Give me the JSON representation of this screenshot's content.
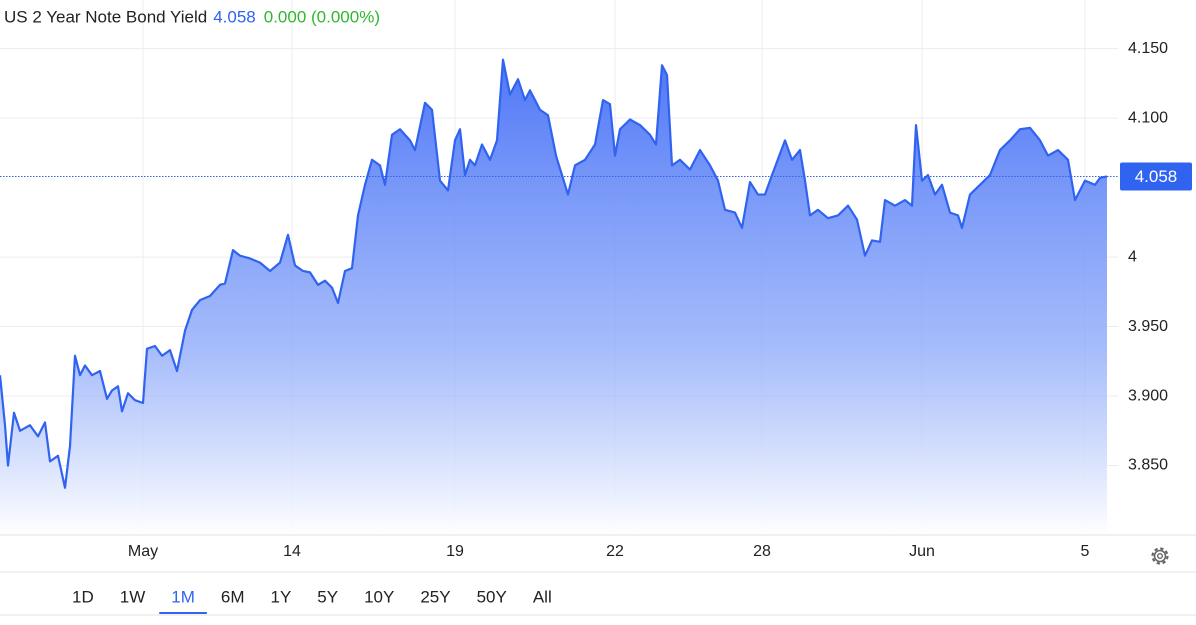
{
  "chart_data": {
    "type": "area",
    "title": "US 2 Year Note Bond Yield",
    "last": 4.058,
    "change": "0.000 (0.000%)",
    "color": "#2f63f0",
    "grid": true,
    "xlim": [
      0,
      111.8
    ],
    "ylim": [
      3.8,
      4.185
    ],
    "xticks": [
      {
        "value": 14.3,
        "label": "May"
      },
      {
        "value": 29.2,
        "label": "14"
      },
      {
        "value": 45.5,
        "label": "19"
      },
      {
        "value": 61.5,
        "label": "22"
      },
      {
        "value": 76.2,
        "label": "28"
      },
      {
        "value": 92.2,
        "label": "Jun"
      },
      {
        "value": 108.5,
        "label": "5"
      }
    ],
    "yticks": [
      {
        "value": 3.85,
        "label": "3.850"
      },
      {
        "value": 3.9,
        "label": "3.900"
      },
      {
        "value": 3.95,
        "label": "3.950"
      },
      4,
      {
        "value": 4.1,
        "label": "4.100"
      },
      {
        "value": 4.15,
        "label": "4.150"
      }
    ],
    "x": [
      0,
      0.5,
      0.8,
      1.4,
      2,
      3,
      3.8,
      4.5,
      5,
      5.8,
      6.5,
      7,
      7.5,
      8,
      8.5,
      9.2,
      10,
      10.7,
      11.2,
      11.8,
      12.2,
      12.8,
      13.5,
      14.3,
      14.7,
      15.5,
      16.2,
      17,
      17.7,
      18.5,
      19.2,
      20,
      21,
      22,
      22.5,
      23.3,
      24,
      25,
      26,
      27,
      28,
      28.8,
      29.5,
      30.3,
      31,
      31.8,
      32.5,
      33.2,
      33.8,
      34.5,
      35.2,
      35.8,
      36.5,
      37.2,
      38,
      38.5,
      39.2,
      40,
      41,
      41.5,
      42.5,
      43.2,
      44,
      44.8,
      45.5,
      46,
      46.5,
      47,
      47.5,
      48.2,
      49,
      49.7,
      50.3,
      51,
      51.8,
      52.5,
      53,
      54,
      54.8,
      55.6,
      56.2,
      56.8,
      57.5,
      58.5,
      59.5,
      60.3,
      61,
      61.5,
      62,
      63,
      64,
      65,
      65.6,
      66.2,
      66.7,
      67.2,
      68,
      69,
      70,
      71,
      71.8,
      72.5,
      73.5,
      74.2,
      75,
      75.8,
      76.5,
      77.2,
      78.5,
      79.2,
      80,
      80.5,
      81,
      81.8,
      82.8,
      83.8,
      84.8,
      85.7,
      86.5,
      87.2,
      88,
      88.5,
      89.5,
      90.5,
      91.2,
      91.6,
      92.2,
      92.8,
      93.5,
      94.2,
      95,
      95.8,
      96.2,
      97,
      98,
      99,
      100,
      101,
      102,
      103,
      104,
      104.8,
      105.8,
      106.8,
      107.5,
      108.5,
      109.5,
      110,
      110.7
    ],
    "values": [
      3.915,
      3.879,
      3.85,
      3.888,
      3.875,
      3.879,
      3.871,
      3.881,
      3.853,
      3.857,
      3.834,
      3.864,
      3.929,
      3.915,
      3.922,
      3.915,
      3.918,
      3.898,
      3.904,
      3.907,
      3.889,
      3.902,
      3.897,
      3.895,
      3.934,
      3.936,
      3.929,
      3.933,
      3.918,
      3.947,
      3.962,
      3.969,
      3.972,
      3.98,
      3.981,
      4.005,
      4.001,
      3.999,
      3.996,
      3.99,
      3.996,
      4.016,
      3.994,
      3.99,
      3.989,
      3.98,
      3.983,
      3.978,
      3.967,
      3.99,
      3.992,
      4.03,
      4.052,
      4.07,
      4.066,
      4.052,
      4.088,
      4.092,
      4.084,
      4.077,
      4.111,
      4.106,
      4.055,
      4.048,
      4.084,
      4.092,
      4.059,
      4.07,
      4.066,
      4.081,
      4.07,
      4.084,
      4.142,
      4.117,
      4.128,
      4.113,
      4.12,
      4.106,
      4.102,
      4.073,
      4.059,
      4.045,
      4.066,
      4.07,
      4.081,
      4.113,
      4.11,
      4.073,
      4.092,
      4.099,
      4.095,
      4.088,
      4.081,
      4.138,
      4.131,
      4.066,
      4.07,
      4.063,
      4.077,
      4.066,
      4.055,
      4.034,
      4.032,
      4.021,
      4.054,
      4.045,
      4.045,
      4.059,
      4.084,
      4.07,
      4.077,
      4.055,
      4.03,
      4.034,
      4.028,
      4.03,
      4.037,
      4.027,
      4.001,
      4.012,
      4.011,
      4.041,
      4.037,
      4.041,
      4.037,
      4.095,
      4.055,
      4.059,
      4.045,
      4.052,
      4.032,
      4.03,
      4.021,
      4.045,
      4.052,
      4.059,
      4.077,
      4.084,
      4.092,
      4.093,
      4.084,
      4.073,
      4.077,
      4.07,
      4.041,
      4.055,
      4.052,
      4.057,
      4.058
    ],
    "ranges": [
      "1D",
      "1W",
      "1M",
      "6M",
      "1Y",
      "5Y",
      "10Y",
      "25Y",
      "50Y",
      "All"
    ],
    "selected_range": "1M"
  }
}
